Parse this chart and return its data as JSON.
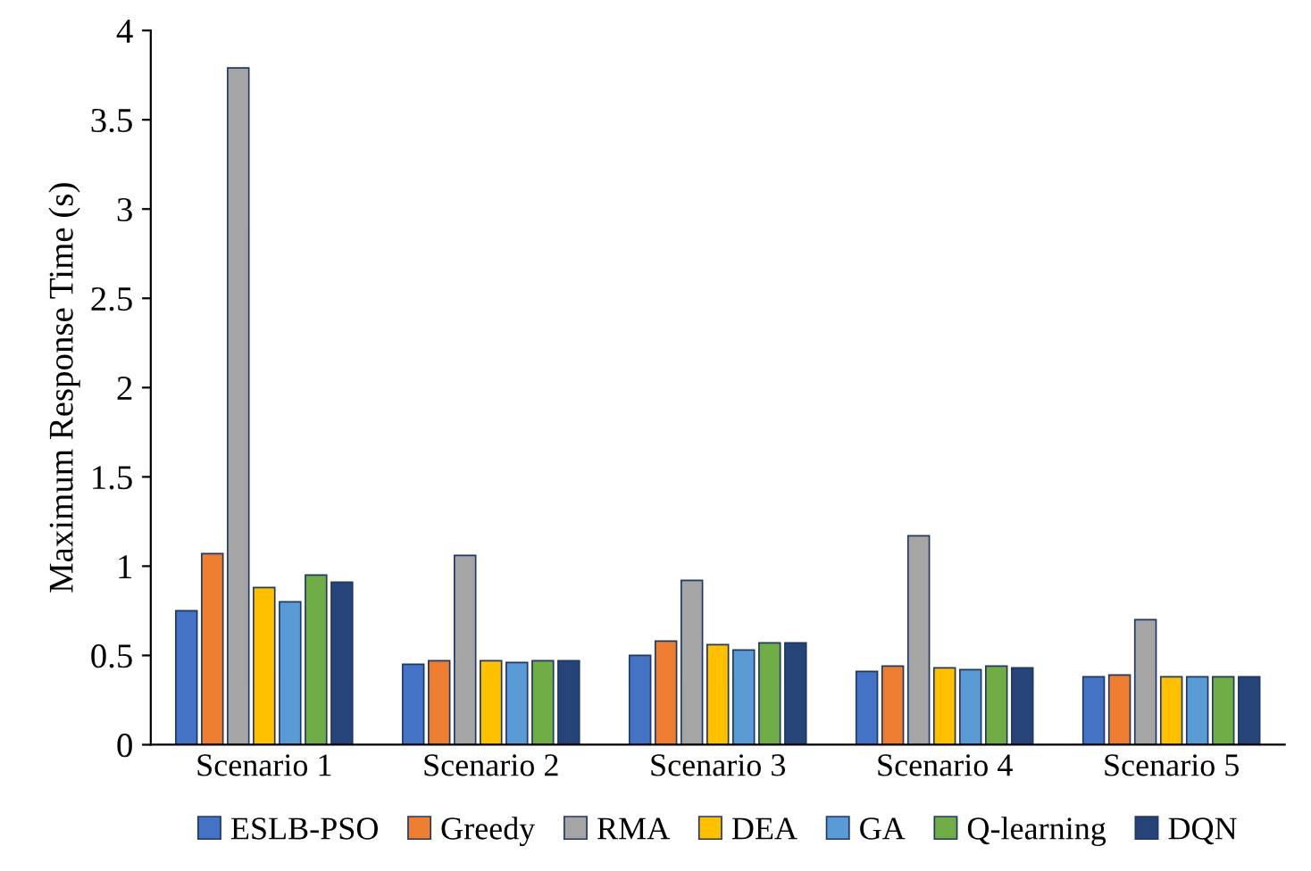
{
  "chart_data": {
    "type": "bar",
    "ylabel": "Maximum Response Time (s)",
    "categories": [
      "Scenario 1",
      "Scenario 2",
      "Scenario 3",
      "Scenario 4",
      "Scenario 5"
    ],
    "series": [
      {
        "name": "ESLB-PSO",
        "color": "#4472c4",
        "values": [
          0.75,
          0.45,
          0.5,
          0.41,
          0.38
        ]
      },
      {
        "name": "Greedy",
        "color": "#ed7d31",
        "values": [
          1.07,
          0.47,
          0.58,
          0.44,
          0.39
        ]
      },
      {
        "name": "RMA",
        "color": "#a5a5a5",
        "values": [
          3.79,
          1.06,
          0.92,
          1.17,
          0.7
        ]
      },
      {
        "name": "DEA",
        "color": "#ffc000",
        "values": [
          0.88,
          0.47,
          0.56,
          0.43,
          0.38
        ]
      },
      {
        "name": "GA",
        "color": "#5b9bd5",
        "values": [
          0.8,
          0.46,
          0.53,
          0.42,
          0.38
        ]
      },
      {
        "name": "Q-learning",
        "color": "#70ad47",
        "values": [
          0.95,
          0.47,
          0.57,
          0.44,
          0.38
        ]
      },
      {
        "name": "DQN",
        "color": "#264478",
        "values": [
          0.91,
          0.47,
          0.57,
          0.43,
          0.38
        ]
      }
    ],
    "ylim": [
      0,
      4
    ],
    "yticks": [
      0,
      0.5,
      1,
      1.5,
      2,
      2.5,
      3,
      3.5,
      4
    ],
    "grid": false,
    "legend": "bottom"
  }
}
